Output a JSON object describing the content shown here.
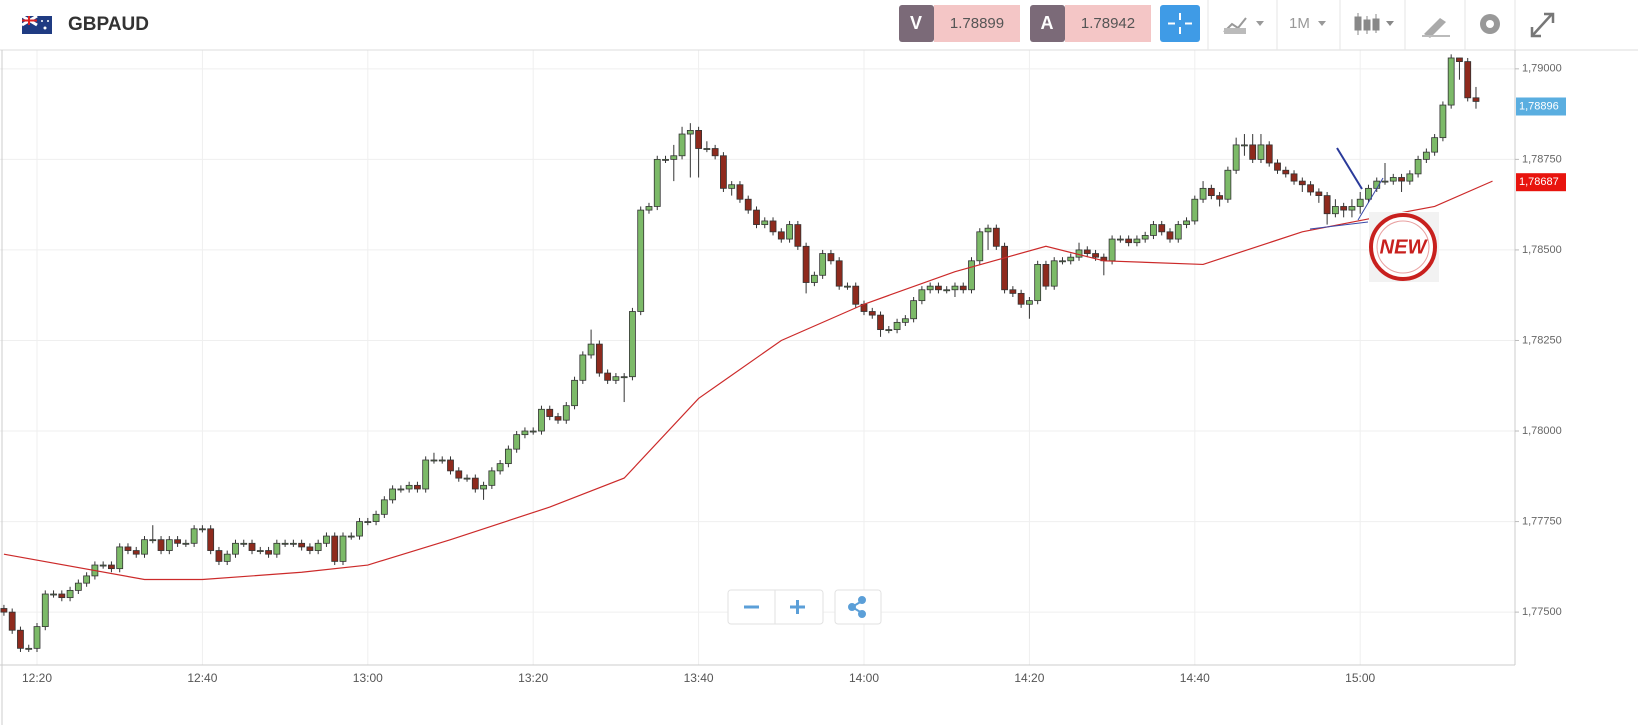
{
  "header": {
    "symbol": "GBPAUD",
    "sell_label": "V",
    "sell_price": "1.78899",
    "buy_label": "A",
    "buy_price": "1.78942",
    "timeframe": "1M"
  },
  "chart_data": {
    "type": "candlestick",
    "categories": [
      null,
      null,
      null,
      null,
      "12:20",
      null,
      null,
      null,
      null,
      null,
      null,
      null,
      null,
      null,
      null,
      null,
      null,
      null,
      null,
      null,
      null,
      null,
      null,
      null,
      "12:40",
      null,
      null,
      null,
      null,
      null,
      null,
      null,
      null,
      null,
      null,
      null,
      null,
      null,
      null,
      null,
      null,
      null,
      null,
      null,
      "13:00",
      null,
      null,
      null,
      null,
      null,
      null,
      null,
      null,
      null,
      null,
      null,
      null,
      null,
      null,
      null,
      null,
      null,
      null,
      null,
      "13:20",
      null,
      null,
      null,
      null,
      null,
      null,
      null,
      null,
      null,
      null,
      null,
      null,
      null,
      null,
      null,
      null,
      null,
      null,
      null,
      "13:40",
      null,
      null,
      null,
      null,
      null,
      null,
      null,
      null,
      null,
      null,
      null,
      null,
      null,
      null,
      null,
      null,
      null,
      null,
      null,
      "14:00",
      null,
      null,
      null,
      null,
      null,
      null,
      null,
      null,
      null,
      null,
      null,
      null,
      null,
      null,
      null,
      null,
      null,
      null,
      null,
      "14:20",
      null,
      null,
      null,
      null,
      null,
      null,
      null,
      null,
      null,
      null,
      null,
      null,
      null,
      null,
      null,
      null,
      null,
      null,
      null,
      "14:40",
      null,
      null,
      null,
      null,
      null,
      null,
      null,
      null,
      null,
      null,
      null,
      null,
      null,
      null,
      null,
      null,
      null,
      null,
      null,
      "15:00",
      null,
      null,
      null,
      null,
      null,
      null,
      null,
      null,
      null,
      null,
      null,
      null,
      null,
      null
    ],
    "open": [
      1.7751,
      1.775,
      1.7745,
      1.774,
      1.774,
      1.7746,
      1.7755,
      1.7755,
      1.7754,
      1.7756,
      1.7758,
      1.776,
      1.7763,
      1.7763,
      1.7762,
      1.7768,
      1.7767,
      1.7766,
      1.777,
      1.777,
      1.7767,
      1.777,
      1.7769,
      1.7769,
      1.7773,
      1.7773,
      1.7767,
      1.7764,
      1.7766,
      1.7769,
      1.7769,
      1.7767,
      1.7767,
      1.7766,
      1.7769,
      1.7769,
      1.7769,
      1.7768,
      1.7767,
      1.7769,
      1.7771,
      1.7764,
      1.7771,
      1.7771,
      1.7775,
      1.7775,
      1.7777,
      1.7781,
      1.7784,
      1.7784,
      1.7785,
      1.7784,
      1.7792,
      1.7792,
      1.7792,
      1.7789,
      1.7787,
      1.7787,
      1.7784,
      1.7785,
      1.7789,
      1.7791,
      1.7795,
      1.7799,
      1.78,
      1.78,
      1.7806,
      1.7804,
      1.7803,
      1.7807,
      1.7814,
      1.7821,
      1.7824,
      1.7816,
      1.7814,
      1.7815,
      1.7815,
      1.7833,
      1.7861,
      1.7862,
      1.7875,
      1.7875,
      1.7876,
      1.7882,
      1.7883,
      1.7878,
      1.7878,
      1.7876,
      1.7867,
      1.7868,
      1.7864,
      1.7861,
      1.7857,
      1.7858,
      1.7855,
      1.7853,
      1.7857,
      1.7851,
      1.7841,
      1.7843,
      1.7849,
      1.7847,
      1.784,
      1.784,
      1.7835,
      1.7833,
      1.7832,
      1.7828,
      1.7828,
      1.783,
      1.7831,
      1.7836,
      1.7839,
      1.784,
      1.7839,
      1.7839,
      1.784,
      1.7839,
      1.7847,
      1.7855,
      1.7856,
      1.7851,
      1.7839,
      1.7838,
      1.7835,
      1.7836,
      1.7846,
      1.784,
      1.7847,
      1.7847,
      1.7848,
      1.785,
      1.7849,
      1.7848,
      1.7847,
      1.7853,
      1.7853,
      1.7852,
      1.7853,
      1.7854,
      1.7857,
      1.7855,
      1.7853,
      1.7857,
      1.7858,
      1.7864,
      1.7867,
      1.7865,
      1.7864,
      1.7872,
      1.7879,
      1.7879,
      1.7875,
      1.7879,
      1.7874,
      1.7872,
      1.7871,
      1.7869,
      1.7868,
      1.7866,
      1.7865,
      1.786,
      1.7862,
      1.7861,
      1.7862,
      1.7864,
      1.7867,
      1.7869,
      1.7869,
      1.787,
      1.7869,
      1.7871,
      1.7875,
      1.7877,
      1.7881,
      1.789,
      1.7903,
      1.7902,
      1.7892
    ],
    "high": [
      1.7752,
      1.7751,
      1.7746,
      1.7741,
      1.7747,
      1.7756,
      1.7756,
      1.7756,
      1.7757,
      1.7759,
      1.7761,
      1.7764,
      1.7764,
      1.7764,
      1.7769,
      1.7769,
      1.7768,
      1.7771,
      1.7774,
      1.7771,
      1.7771,
      1.7771,
      1.777,
      1.7774,
      1.7774,
      1.7774,
      1.7768,
      1.7767,
      1.777,
      1.777,
      1.777,
      1.7768,
      1.7768,
      1.777,
      1.777,
      1.777,
      1.777,
      1.7769,
      1.777,
      1.7772,
      1.7772,
      1.7772,
      1.7772,
      1.7776,
      1.7776,
      1.7778,
      1.7782,
      1.7785,
      1.7785,
      1.7786,
      1.7786,
      1.7793,
      1.7794,
      1.7793,
      1.7793,
      1.779,
      1.7788,
      1.7788,
      1.7786,
      1.779,
      1.7792,
      1.7796,
      1.78,
      1.7801,
      1.7801,
      1.7807,
      1.7807,
      1.7805,
      1.7808,
      1.7815,
      1.7822,
      1.7828,
      1.7825,
      1.7817,
      1.7816,
      1.7816,
      1.7834,
      1.7862,
      1.7863,
      1.7876,
      1.7876,
      1.7879,
      1.7884,
      1.7885,
      1.7884,
      1.788,
      1.7879,
      1.7877,
      1.7869,
      1.7869,
      1.7865,
      1.7862,
      1.7859,
      1.7859,
      1.7856,
      1.7858,
      1.7858,
      1.7852,
      1.7844,
      1.785,
      1.785,
      1.7848,
      1.7841,
      1.7841,
      1.7836,
      1.7834,
      1.7833,
      1.7829,
      1.7831,
      1.7832,
      1.7837,
      1.784,
      1.7841,
      1.7841,
      1.784,
      1.7841,
      1.7841,
      1.7848,
      1.7856,
      1.7857,
      1.7857,
      1.7852,
      1.784,
      1.7839,
      1.7837,
      1.7847,
      1.7847,
      1.7848,
      1.7848,
      1.7849,
      1.7852,
      1.7851,
      1.785,
      1.7849,
      1.7854,
      1.7854,
      1.7854,
      1.7854,
      1.7855,
      1.7858,
      1.7858,
      1.7856,
      1.7858,
      1.7859,
      1.7865,
      1.7869,
      1.7868,
      1.7866,
      1.7873,
      1.7881,
      1.7882,
      1.7882,
      1.7882,
      1.788,
      1.7875,
      1.7873,
      1.7872,
      1.787,
      1.7869,
      1.7867,
      1.7866,
      1.7864,
      1.7863,
      1.7864,
      1.7866,
      1.7868,
      1.787,
      1.7874,
      1.7871,
      1.7871,
      1.7872,
      1.7876,
      1.7878,
      1.7882,
      1.7891,
      1.7904,
      1.7903,
      1.7903,
      1.7895
    ],
    "low": [
      1.7749,
      1.7744,
      1.7739,
      1.7739,
      1.7739,
      1.7745,
      1.7754,
      1.7753,
      1.7753,
      1.7755,
      1.7757,
      1.7759,
      1.7762,
      1.7761,
      1.7761,
      1.7766,
      1.7765,
      1.7765,
      1.7769,
      1.7766,
      1.7766,
      1.7768,
      1.7768,
      1.7768,
      1.7772,
      1.7766,
      1.7763,
      1.7763,
      1.7765,
      1.7768,
      1.7766,
      1.7766,
      1.7765,
      1.7765,
      1.7768,
      1.7768,
      1.7767,
      1.7766,
      1.7766,
      1.7768,
      1.7763,
      1.7763,
      1.777,
      1.777,
      1.7774,
      1.7774,
      1.7776,
      1.778,
      1.7783,
      1.7783,
      1.7783,
      1.7783,
      1.7791,
      1.7791,
      1.7788,
      1.7786,
      1.7786,
      1.7783,
      1.7781,
      1.7784,
      1.7788,
      1.779,
      1.7794,
      1.7798,
      1.7799,
      1.7799,
      1.7803,
      1.7802,
      1.7802,
      1.7806,
      1.7813,
      1.782,
      1.7815,
      1.7813,
      1.7813,
      1.7808,
      1.7814,
      1.7832,
      1.786,
      1.7861,
      1.7874,
      1.7869,
      1.7875,
      1.787,
      1.787,
      1.7877,
      1.7875,
      1.7866,
      1.7865,
      1.7863,
      1.786,
      1.7856,
      1.7856,
      1.7854,
      1.7852,
      1.7852,
      1.785,
      1.7838,
      1.784,
      1.7842,
      1.7846,
      1.7839,
      1.7839,
      1.7834,
      1.7832,
      1.7831,
      1.7826,
      1.7827,
      1.7827,
      1.7829,
      1.783,
      1.7835,
      1.7838,
      1.7838,
      1.7838,
      1.7837,
      1.7838,
      1.7838,
      1.7846,
      1.785,
      1.785,
      1.7838,
      1.7837,
      1.7834,
      1.7831,
      1.7835,
      1.7839,
      1.7839,
      1.7846,
      1.7846,
      1.7847,
      1.7848,
      1.7847,
      1.7843,
      1.7846,
      1.7852,
      1.7851,
      1.7851,
      1.7852,
      1.7853,
      1.7854,
      1.7852,
      1.7852,
      1.7856,
      1.7857,
      1.7863,
      1.7864,
      1.7862,
      1.7863,
      1.7871,
      1.7876,
      1.7874,
      1.7874,
      1.7873,
      1.7871,
      1.787,
      1.7868,
      1.7866,
      1.7865,
      1.7863,
      1.7857,
      1.7859,
      1.7859,
      1.7859,
      1.786,
      1.7863,
      1.7866,
      1.7868,
      1.7868,
      1.7866,
      1.7868,
      1.787,
      1.7874,
      1.7876,
      1.788,
      1.7889,
      1.7897,
      1.7891,
      1.7889
    ],
    "close": [
      1.775,
      1.7745,
      1.774,
      1.774,
      1.7746,
      1.7755,
      1.7755,
      1.7754,
      1.7756,
      1.7758,
      1.776,
      1.7763,
      1.7763,
      1.7762,
      1.7768,
      1.7767,
      1.7766,
      1.777,
      1.777,
      1.7767,
      1.777,
      1.7769,
      1.7769,
      1.7773,
      1.7773,
      1.7767,
      1.7764,
      1.7766,
      1.7769,
      1.7769,
      1.7767,
      1.7767,
      1.7766,
      1.7769,
      1.7769,
      1.7769,
      1.7768,
      1.7767,
      1.7769,
      1.7771,
      1.7764,
      1.7771,
      1.7771,
      1.7775,
      1.7775,
      1.7777,
      1.7781,
      1.7784,
      1.7784,
      1.7785,
      1.7784,
      1.7792,
      1.7792,
      1.7792,
      1.7789,
      1.7787,
      1.7787,
      1.7784,
      1.7785,
      1.7789,
      1.7791,
      1.7795,
      1.7799,
      1.78,
      1.78,
      1.7806,
      1.7804,
      1.7803,
      1.7807,
      1.7814,
      1.7821,
      1.7824,
      1.7816,
      1.7814,
      1.7815,
      1.7815,
      1.7833,
      1.7861,
      1.7862,
      1.7875,
      1.7875,
      1.7876,
      1.7882,
      1.7883,
      1.7878,
      1.7878,
      1.7876,
      1.7867,
      1.7868,
      1.7864,
      1.7861,
      1.7857,
      1.7858,
      1.7855,
      1.7853,
      1.7857,
      1.7851,
      1.7841,
      1.7843,
      1.7849,
      1.7847,
      1.784,
      1.784,
      1.7835,
      1.7833,
      1.7832,
      1.7828,
      1.7828,
      1.783,
      1.7831,
      1.7836,
      1.7839,
      1.784,
      1.7839,
      1.7839,
      1.784,
      1.7839,
      1.7847,
      1.7855,
      1.7856,
      1.7851,
      1.7839,
      1.7838,
      1.7835,
      1.7836,
      1.7846,
      1.784,
      1.7847,
      1.7847,
      1.7848,
      1.785,
      1.7849,
      1.7848,
      1.7847,
      1.7853,
      1.7853,
      1.7852,
      1.7853,
      1.7854,
      1.7857,
      1.7855,
      1.7853,
      1.7857,
      1.7858,
      1.7864,
      1.7867,
      1.7865,
      1.7864,
      1.7872,
      1.7879,
      1.7879,
      1.7875,
      1.7879,
      1.7874,
      1.7872,
      1.7871,
      1.7869,
      1.7868,
      1.7866,
      1.7865,
      1.786,
      1.7862,
      1.7861,
      1.7862,
      1.7864,
      1.7867,
      1.7869,
      1.7869,
      1.787,
      1.7869,
      1.7871,
      1.7875,
      1.7877,
      1.7881,
      1.789,
      1.7903,
      1.7902,
      1.7892,
      1.7891
    ],
    "up_color": "#7cba68",
    "down_color": "#8e2a1d",
    "ma": {
      "color": "#cc2a2a",
      "x": [
        0,
        17,
        24,
        36,
        44,
        54,
        66,
        75,
        84,
        94,
        104,
        115,
        126,
        133,
        145,
        157,
        166,
        173,
        180
      ],
      "values": [
        1.7766,
        1.7759,
        1.7759,
        1.7761,
        1.7763,
        1.777,
        1.7779,
        1.7787,
        1.7809,
        1.7825,
        1.7835,
        1.7844,
        1.7851,
        1.7847,
        1.7846,
        1.7855,
        1.7859,
        1.7862,
        1.7869
      ]
    },
    "ylim": [
      1.77354,
      1.79052
    ],
    "yticks": [
      {
        "value": 1.775,
        "label": "1,77500"
      },
      {
        "value": 1.7775,
        "label": "1,77750"
      },
      {
        "value": 1.78,
        "label": "1,78000"
      },
      {
        "value": 1.7825,
        "label": "1,78250"
      },
      {
        "value": 1.785,
        "label": "1,78500"
      },
      {
        "value": 1.7875,
        "label": "1,78750"
      },
      {
        "value": 1.79,
        "label": "1,79000"
      }
    ],
    "grid": true,
    "price_labels": [
      {
        "value": 1.78896,
        "label": "1,78896",
        "color": "#5aaee0"
      },
      {
        "value": 1.78687,
        "label": "1,78687",
        "color": "#e8140e"
      }
    ],
    "badge": "NEW"
  }
}
